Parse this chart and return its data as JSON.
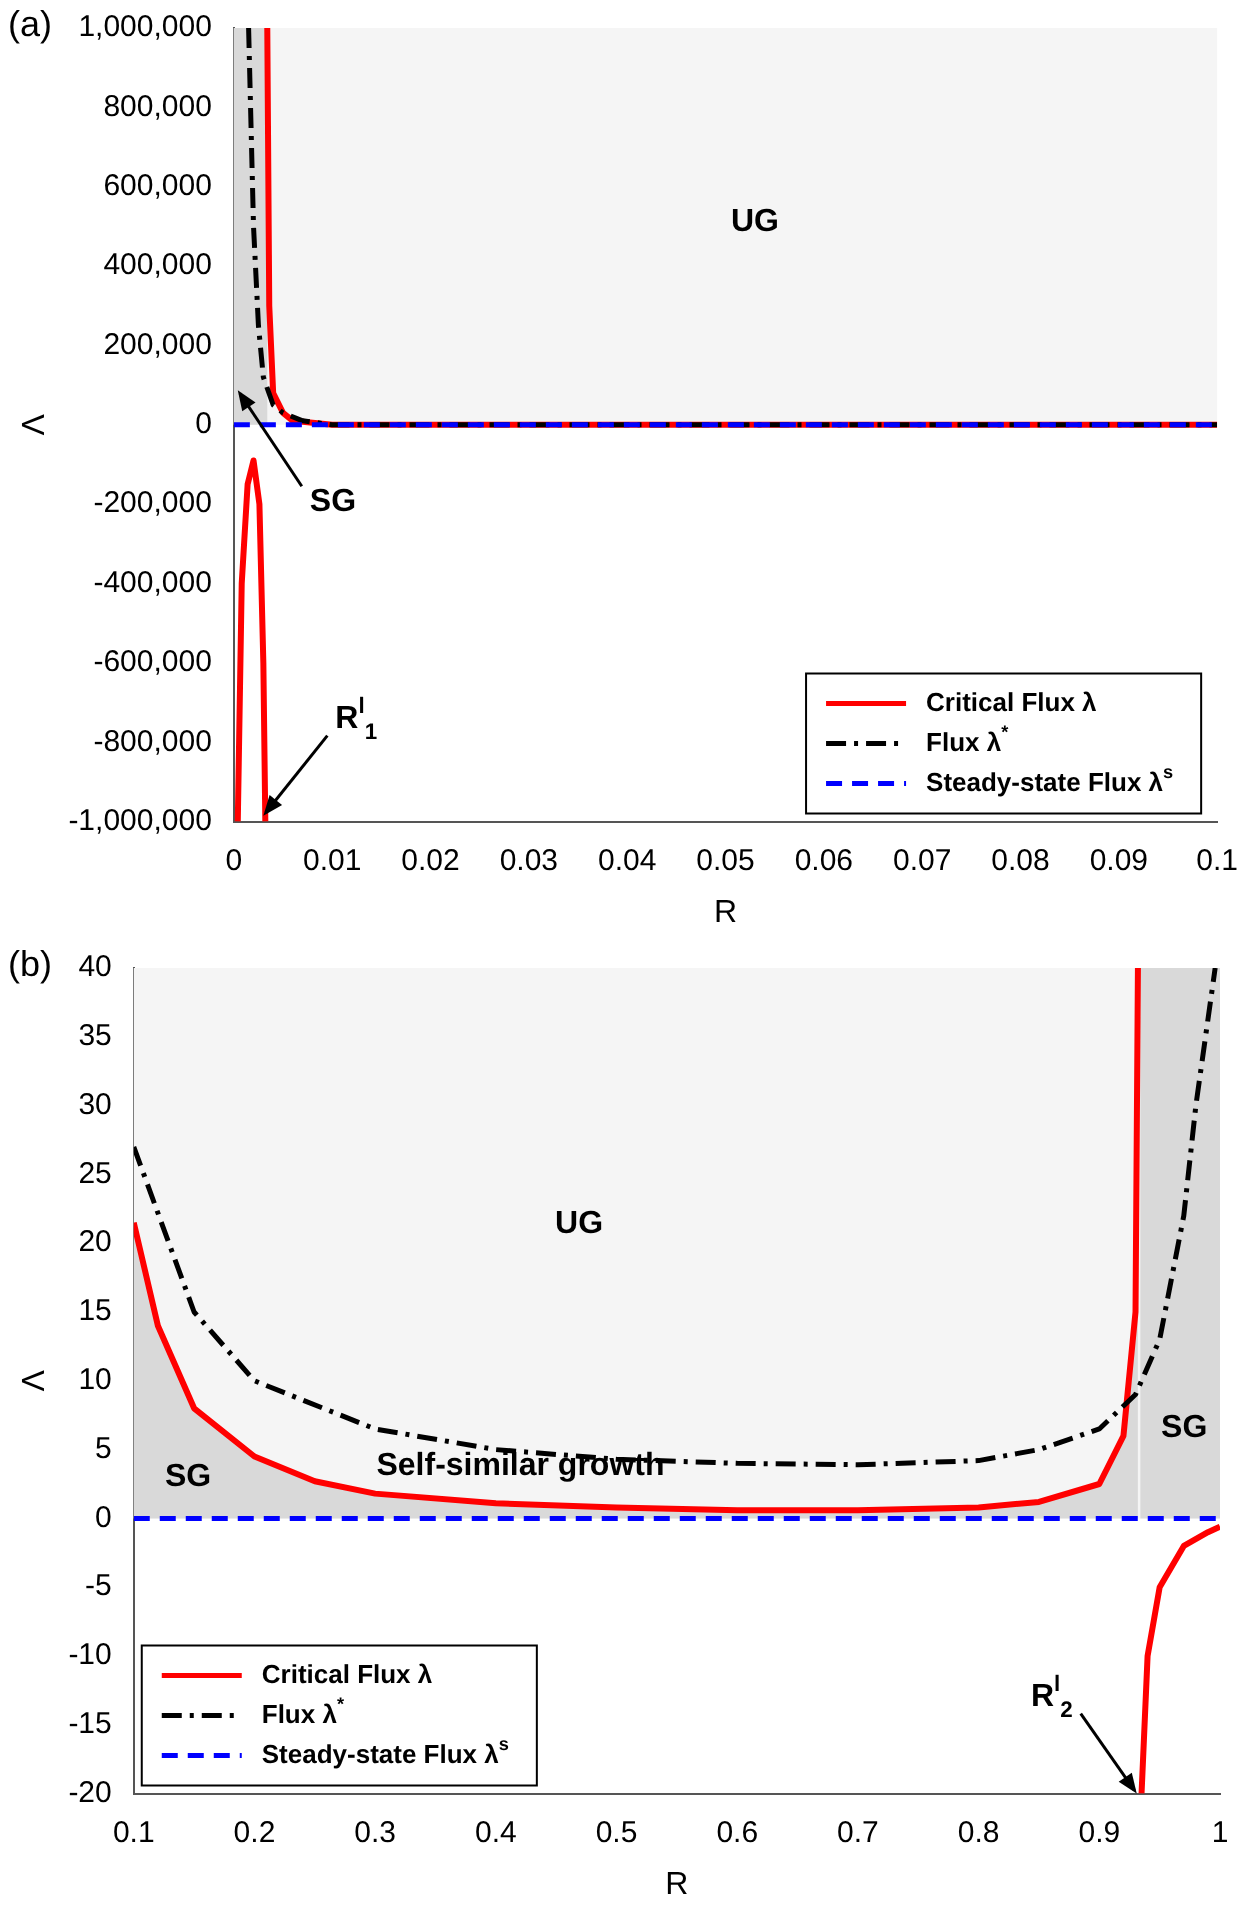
{
  "chart_data": [
    {
      "type": "line",
      "title": "(a)",
      "xlabel": "R",
      "ylabel": "Λ",
      "xlim": [
        0,
        0.1
      ],
      "xticks": [
        0,
        0.01,
        0.02,
        0.03,
        0.04,
        0.05,
        0.06,
        0.07,
        0.08,
        0.09,
        0.1
      ],
      "ylim": [
        -1000000,
        1000000
      ],
      "yticks": [
        {
          "value": -1000000,
          "label": "-1,000,000"
        },
        {
          "value": -800000,
          "label": "-800,000"
        },
        {
          "value": -600000,
          "label": "-600,000"
        },
        {
          "value": -400000,
          "label": "-400,000"
        },
        {
          "value": -200000,
          "label": "-200,000"
        },
        0,
        {
          "value": 200000,
          "label": "200,000"
        },
        {
          "value": 400000,
          "label": "400,000"
        },
        {
          "value": 600000,
          "label": "600,000"
        },
        {
          "value": 800000,
          "label": "800,000"
        },
        {
          "value": 1000000,
          "label": "1,000,000"
        }
      ],
      "legend": "bottom right",
      "marker": "none",
      "bands": [
        {
          "axis": "y",
          "from": 0,
          "to": 1000000,
          "color": "#f5f5f5"
        },
        {
          "axis": "x",
          "from": 0,
          "to": 0.0034,
          "color": "#d9d9d9"
        }
      ],
      "series": [
        {
          "name": "Critical Flux λ",
          "color": "#ff0000",
          "line_style": "solid",
          "x": [
            0.0004,
            0.0008,
            0.0014,
            0.002,
            0.0026,
            0.003,
            0.0032,
            0.0033,
            0.0034,
            0.0036,
            0.004,
            0.005,
            0.006,
            0.01,
            0.1
          ],
          "values": [
            -1000000,
            -400000,
            -150000,
            -90000,
            -200000,
            -600000,
            -1000000,
            null,
            1000000,
            300000,
            80000,
            30000,
            10000,
            0,
            0
          ]
        },
        {
          "name": "Flux λ$^{*}$",
          "color": "#000000",
          "line_style": "dashdot",
          "x": [
            0.0015,
            0.0018,
            0.002,
            0.0025,
            0.003,
            0.004,
            0.005,
            0.007,
            0.01,
            0.1
          ],
          "values": [
            1000000,
            700000,
            500000,
            250000,
            120000,
            50000,
            30000,
            10000,
            0,
            0
          ]
        },
        {
          "name": "Steady-state Flux λ$^{s}$",
          "color": "#0000ff",
          "line_style": "dashed",
          "x": [
            0,
            0.1
          ],
          "values": [
            0,
            0
          ]
        }
      ],
      "annotations": [
        "UG",
        {
          "text": "SG",
          "x": 0.0004,
          "y": 87000
        },
        {
          "text": "R$^{l}$$_{1}$",
          "x": 0.003,
          "y": -985000
        }
      ]
    },
    {
      "type": "line",
      "title": "(b)",
      "xlabel": "R",
      "ylabel": "Λ",
      "xlim": [
        0.1,
        1
      ],
      "xticks": [
        0.1,
        0.2,
        0.3,
        0.4,
        0.5,
        0.6,
        0.7,
        0.8,
        0.9,
        1
      ],
      "ylim": [
        -20,
        40
      ],
      "yticks": [
        -20,
        -15,
        -10,
        -5,
        0,
        5,
        10,
        15,
        20,
        25,
        30,
        35,
        40
      ],
      "legend": "bottom left",
      "marker": "none",
      "bands": [
        {
          "axis": "y",
          "from": 0,
          "to": 40,
          "color": "#f5f5f5"
        },
        {
          "axis": "x",
          "from": 0.934,
          "to": 1,
          "color": "#d9d9d9"
        }
      ],
      "series": [
        {
          "name": "Critical Flux λ",
          "color": "#ff0000",
          "line_style": "solid",
          "x": [
            0.1,
            0.12,
            0.15,
            0.2,
            0.25,
            0.3,
            0.4,
            0.5,
            0.6,
            0.7,
            0.8,
            0.85,
            0.9,
            0.92,
            0.93,
            0.932,
            0.933,
            0.935,
            0.94,
            0.95,
            0.97,
            0.99,
            1
          ],
          "values": [
            21.5,
            14,
            8,
            4.5,
            2.7,
            1.8,
            1.1,
            0.8,
            0.6,
            0.6,
            0.8,
            1.2,
            2.5,
            6,
            15,
            40,
            null,
            -20,
            -10,
            -5,
            -2,
            -1,
            -0.6
          ],
          "lower": [
            0,
            0,
            0,
            0,
            0,
            0,
            0,
            0,
            0,
            0,
            0,
            0,
            0,
            0,
            0,
            0,
            null,
            null,
            null,
            null,
            null,
            null,
            null
          ],
          "upper": [
            21.5,
            14,
            8,
            4.5,
            2.7,
            1.8,
            1.1,
            0.8,
            0.6,
            0.6,
            0.8,
            1.2,
            2.5,
            6,
            15,
            40,
            null,
            null,
            null,
            null,
            null,
            null,
            null
          ]
        },
        {
          "name": "Flux λ$^{*}$",
          "color": "#000000",
          "line_style": "dashdot",
          "x": [
            0.1,
            0.15,
            0.2,
            0.3,
            0.4,
            0.5,
            0.6,
            0.7,
            0.8,
            0.85,
            0.9,
            0.93,
            0.95,
            0.97,
            0.98,
            0.996
          ],
          "values": [
            27,
            15,
            10,
            6.5,
            5,
            4.3,
            4,
            3.9,
            4.2,
            5,
            6.5,
            9,
            13,
            22,
            30,
            40
          ]
        },
        {
          "name": "Steady-state Flux λ$^{s}$",
          "color": "#0000ff",
          "line_style": "dashed",
          "x": [
            0.1,
            1
          ],
          "values": [
            0,
            0
          ]
        }
      ],
      "annotations": [
        "UG",
        "SG",
        "Self-similar growth",
        "SG",
        {
          "text": "R$^{l}$$_{2}$",
          "x": 0.931,
          "y": -20
        }
      ]
    }
  ]
}
